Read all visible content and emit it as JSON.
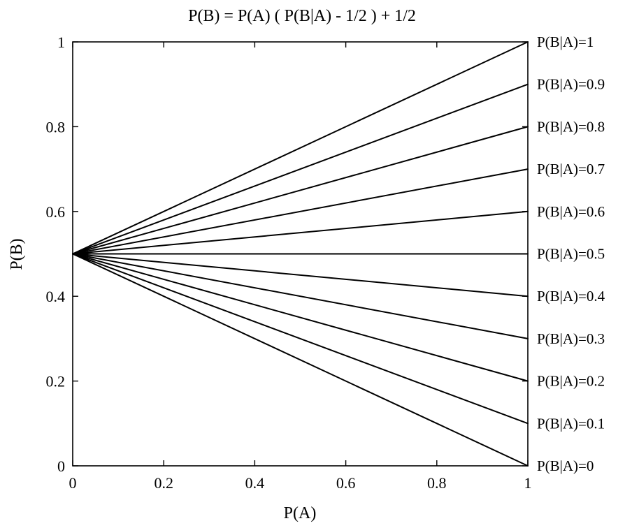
{
  "chart_data": {
    "type": "line",
    "title": "P(B) = P(A) ( P(B|A) - 1/2 ) + 1/2",
    "xlabel": "P(A)",
    "ylabel": "P(B)",
    "xlim": [
      0,
      1
    ],
    "ylim": [
      0,
      1
    ],
    "x_ticks": [
      "0",
      "0.2",
      "0.4",
      "0.6",
      "0.8",
      "1"
    ],
    "y_ticks": [
      "0",
      "0.2",
      "0.4",
      "0.6",
      "0.8",
      "1"
    ],
    "x_tick_values": [
      0,
      0.2,
      0.4,
      0.6,
      0.8,
      1
    ],
    "y_tick_values": [
      0,
      0.2,
      0.4,
      0.6,
      0.8,
      1
    ],
    "grid": false,
    "legend": "none",
    "line_color": "#000000",
    "series": [
      {
        "name": "P(B|A)=1",
        "x": [
          0,
          1
        ],
        "y": [
          0.5,
          1.0
        ]
      },
      {
        "name": "P(B|A)=0.9",
        "x": [
          0,
          1
        ],
        "y": [
          0.5,
          0.9
        ]
      },
      {
        "name": "P(B|A)=0.8",
        "x": [
          0,
          1
        ],
        "y": [
          0.5,
          0.8
        ]
      },
      {
        "name": "P(B|A)=0.7",
        "x": [
          0,
          1
        ],
        "y": [
          0.5,
          0.7
        ]
      },
      {
        "name": "P(B|A)=0.6",
        "x": [
          0,
          1
        ],
        "y": [
          0.5,
          0.6
        ]
      },
      {
        "name": "P(B|A)=0.5",
        "x": [
          0,
          1
        ],
        "y": [
          0.5,
          0.5
        ]
      },
      {
        "name": "P(B|A)=0.4",
        "x": [
          0,
          1
        ],
        "y": [
          0.5,
          0.4
        ]
      },
      {
        "name": "P(B|A)=0.3",
        "x": [
          0,
          1
        ],
        "y": [
          0.5,
          0.3
        ]
      },
      {
        "name": "P(B|A)=0.2",
        "x": [
          0,
          1
        ],
        "y": [
          0.5,
          0.2
        ]
      },
      {
        "name": "P(B|A)=0.1",
        "x": [
          0,
          1
        ],
        "y": [
          0.5,
          0.1
        ]
      },
      {
        "name": "P(B|A)=0",
        "x": [
          0,
          1
        ],
        "y": [
          0.5,
          0.0
        ]
      }
    ]
  }
}
